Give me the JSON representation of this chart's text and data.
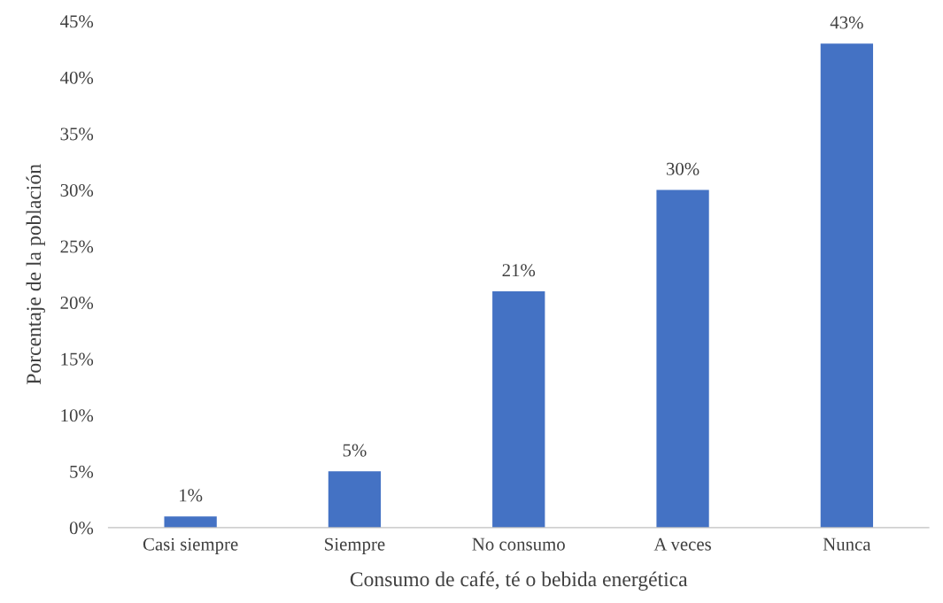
{
  "chart_data": {
    "type": "bar",
    "xlabel": "Consumo de café, té o bebida energética",
    "ylabel": "Porcentaje de la población",
    "categories": [
      "Casi siempre",
      "Siempre",
      "No consumo",
      "A veces",
      "Nunca"
    ],
    "values": [
      1,
      5,
      21,
      30,
      43
    ],
    "value_labels": [
      "1%",
      "5%",
      "21%",
      "30%",
      "43%"
    ],
    "color": "#4472c4",
    "ylim": [
      0,
      45
    ],
    "yticks": [
      {
        "value": 0,
        "label": "0%"
      },
      {
        "value": 5,
        "label": "5%"
      },
      {
        "value": 10,
        "label": "10%"
      },
      {
        "value": 15,
        "label": "15%"
      },
      {
        "value": 20,
        "label": "20%"
      },
      {
        "value": 25,
        "label": "25%"
      },
      {
        "value": 30,
        "label": "30%"
      },
      {
        "value": 35,
        "label": "35%"
      },
      {
        "value": 40,
        "label": "40%"
      },
      {
        "value": 45,
        "label": "45%"
      }
    ],
    "grid": false,
    "legend": false
  }
}
